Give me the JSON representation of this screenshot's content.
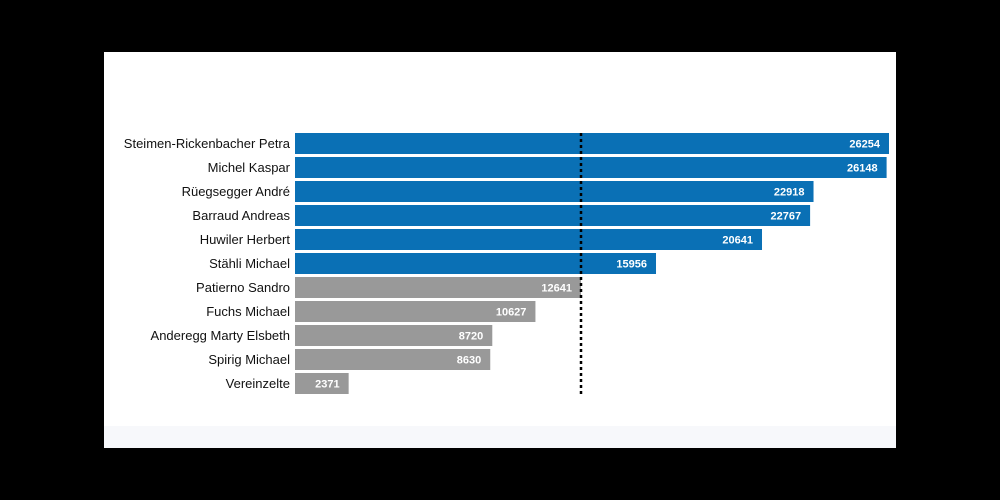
{
  "chart_data": {
    "type": "bar",
    "orientation": "horizontal",
    "categories": [
      "Steimen-Rickenbacher Petra",
      "Michel Kaspar",
      "Rüegsegger André",
      "Barraud Andreas",
      "Huwiler Herbert",
      "Stähli Michael",
      "Patierno Sandro",
      "Fuchs Michael",
      "Anderegg Marty Elsbeth",
      "Spirig Michael",
      "Vereinzelte"
    ],
    "values": [
      26254,
      26148,
      22918,
      22767,
      20641,
      15956,
      12641,
      10627,
      8720,
      8630,
      2371
    ],
    "value_labels": [
      "26254",
      "26148",
      "22918",
      "22767",
      "20641",
      "15956",
      "12641",
      "10627",
      "8720",
      "8630",
      "2371"
    ],
    "elected_count": 6,
    "colors": {
      "elected": "#0a70b5",
      "not_elected": "#999999",
      "threshold": "#000000"
    },
    "threshold": 12641,
    "threshold_style": "dotted",
    "xlim": [
      0,
      26254
    ],
    "grid": false,
    "legend": "none"
  }
}
